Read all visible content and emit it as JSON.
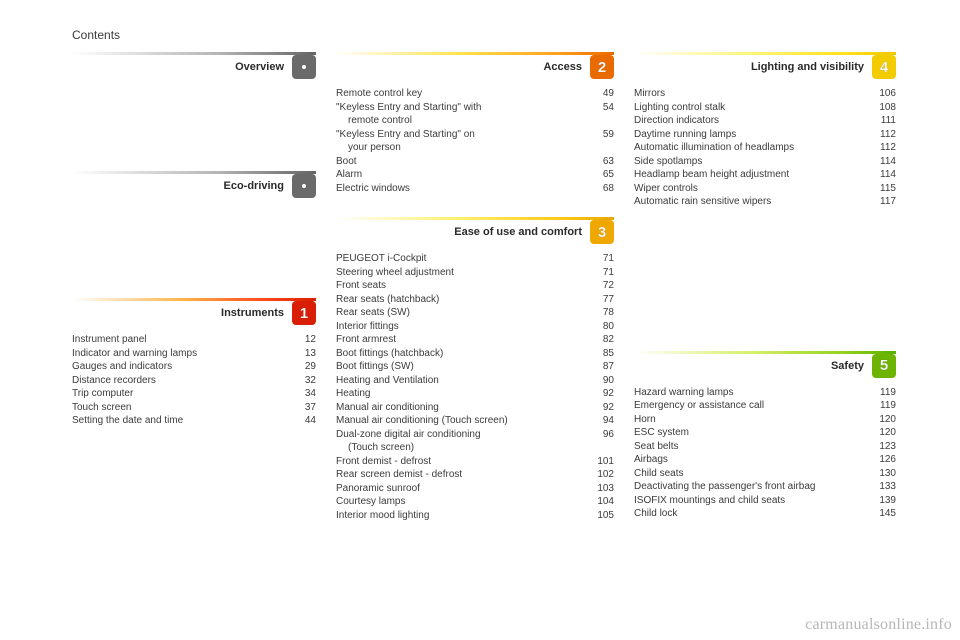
{
  "header": {
    "title": "Contents"
  },
  "watermark": "carmanualsonline.info",
  "colors": {
    "badge_gray": {
      "bg": "#6a6a6a",
      "fg": "#ffffff"
    },
    "badge_red": {
      "bg": "#d81e05",
      "fg": "#ffffff"
    },
    "badge_orange": {
      "bg": "#e86a00",
      "fg": "#ffffff"
    },
    "badge_amber": {
      "bg": "#f0a800",
      "fg": "#ffffff"
    },
    "badge_yellow": {
      "bg": "#f3cc00",
      "fg": "#ffffff"
    },
    "badge_green": {
      "bg": "#6cb400",
      "fg": "#ffffff"
    }
  },
  "sections": {
    "overview": {
      "title": "Overview",
      "rule_class": "grad-gray",
      "num": "."
    },
    "eco": {
      "title": "Eco-driving",
      "rule_class": "grad-gray",
      "num": "."
    },
    "instruments": {
      "title": "Instruments",
      "rule_class": "grad-red",
      "num": "1",
      "entries": [
        {
          "label": "Instrument panel",
          "page": "12"
        },
        {
          "label": "Indicator and warning lamps",
          "page": "13"
        },
        {
          "label": "Gauges and indicators",
          "page": "29"
        },
        {
          "label": "Distance recorders",
          "page": "32"
        },
        {
          "label": "Trip computer",
          "page": "34"
        },
        {
          "label": "Touch screen",
          "page": "37"
        },
        {
          "label": "Setting the date and time",
          "page": "44"
        }
      ]
    },
    "access": {
      "title": "Access",
      "rule_class": "grad-orange",
      "num": "2",
      "entries": [
        {
          "label": "Remote control key",
          "page": "49"
        },
        {
          "label": "\"Keyless Entry and Starting\" with remote control",
          "page": "54",
          "wrap": true
        },
        {
          "label": "\"Keyless Entry and Starting\" on your person",
          "page": "59",
          "wrap": true
        },
        {
          "label": "Boot",
          "page": "63"
        },
        {
          "label": "Alarm",
          "page": "65"
        },
        {
          "label": "Electric windows",
          "page": "68"
        }
      ]
    },
    "ease": {
      "title": "Ease of use and comfort",
      "rule_class": "grad-amber",
      "num": "3",
      "entries": [
        {
          "label": "PEUGEOT i-Cockpit",
          "page": "71"
        },
        {
          "label": "Steering wheel adjustment",
          "page": "71"
        },
        {
          "label": "Front seats",
          "page": "72"
        },
        {
          "label": "Rear seats (hatchback)",
          "page": "77"
        },
        {
          "label": "Rear seats (SW)",
          "page": "78"
        },
        {
          "label": "Interior fittings",
          "page": "80"
        },
        {
          "label": "Front armrest",
          "page": "82"
        },
        {
          "label": "Boot fittings (hatchback)",
          "page": "85"
        },
        {
          "label": "Boot fittings (SW)",
          "page": "87"
        },
        {
          "label": "Heating and Ventilation",
          "page": "90"
        },
        {
          "label": "Heating",
          "page": "92"
        },
        {
          "label": "Manual air conditioning",
          "page": "92"
        },
        {
          "label": "Manual air conditioning (Touch screen)",
          "page": "94"
        },
        {
          "label": "Dual-zone digital air conditioning (Touch screen)",
          "page": "96",
          "wrap": true
        },
        {
          "label": "Front demist - defrost",
          "page": "101"
        },
        {
          "label": "Rear screen demist - defrost",
          "page": "102"
        },
        {
          "label": "Panoramic sunroof",
          "page": "103"
        },
        {
          "label": "Courtesy lamps",
          "page": "104"
        },
        {
          "label": "Interior mood lighting",
          "page": "105"
        }
      ]
    },
    "lighting": {
      "title": "Lighting and visibility",
      "rule_class": "grad-yellow",
      "num": "4",
      "entries": [
        {
          "label": "Mirrors",
          "page": "106"
        },
        {
          "label": "Lighting control stalk",
          "page": "108"
        },
        {
          "label": "Direction indicators",
          "page": "111"
        },
        {
          "label": "Daytime running lamps",
          "page": "112"
        },
        {
          "label": "Automatic illumination of headlamps",
          "page": "112"
        },
        {
          "label": "Side spotlamps",
          "page": "114"
        },
        {
          "label": "Headlamp beam height adjustment",
          "page": "114"
        },
        {
          "label": "Wiper controls",
          "page": "115"
        },
        {
          "label": "Automatic rain sensitive wipers",
          "page": "117"
        }
      ]
    },
    "safety": {
      "title": "Safety",
      "rule_class": "grad-green",
      "num": "5",
      "entries": [
        {
          "label": "Hazard warning lamps",
          "page": "119"
        },
        {
          "label": "Emergency or assistance call",
          "page": "119"
        },
        {
          "label": "Horn",
          "page": "120"
        },
        {
          "label": "ESC system",
          "page": "120"
        },
        {
          "label": "Seat belts",
          "page": "123"
        },
        {
          "label": "Airbags",
          "page": "126"
        },
        {
          "label": "Child seats",
          "page": "130"
        },
        {
          "label": "Deactivating the passenger's front airbag",
          "page": "133"
        },
        {
          "label": "ISOFIX mountings and child seats",
          "page": "139"
        },
        {
          "label": "Child lock",
          "page": "145"
        }
      ]
    }
  }
}
